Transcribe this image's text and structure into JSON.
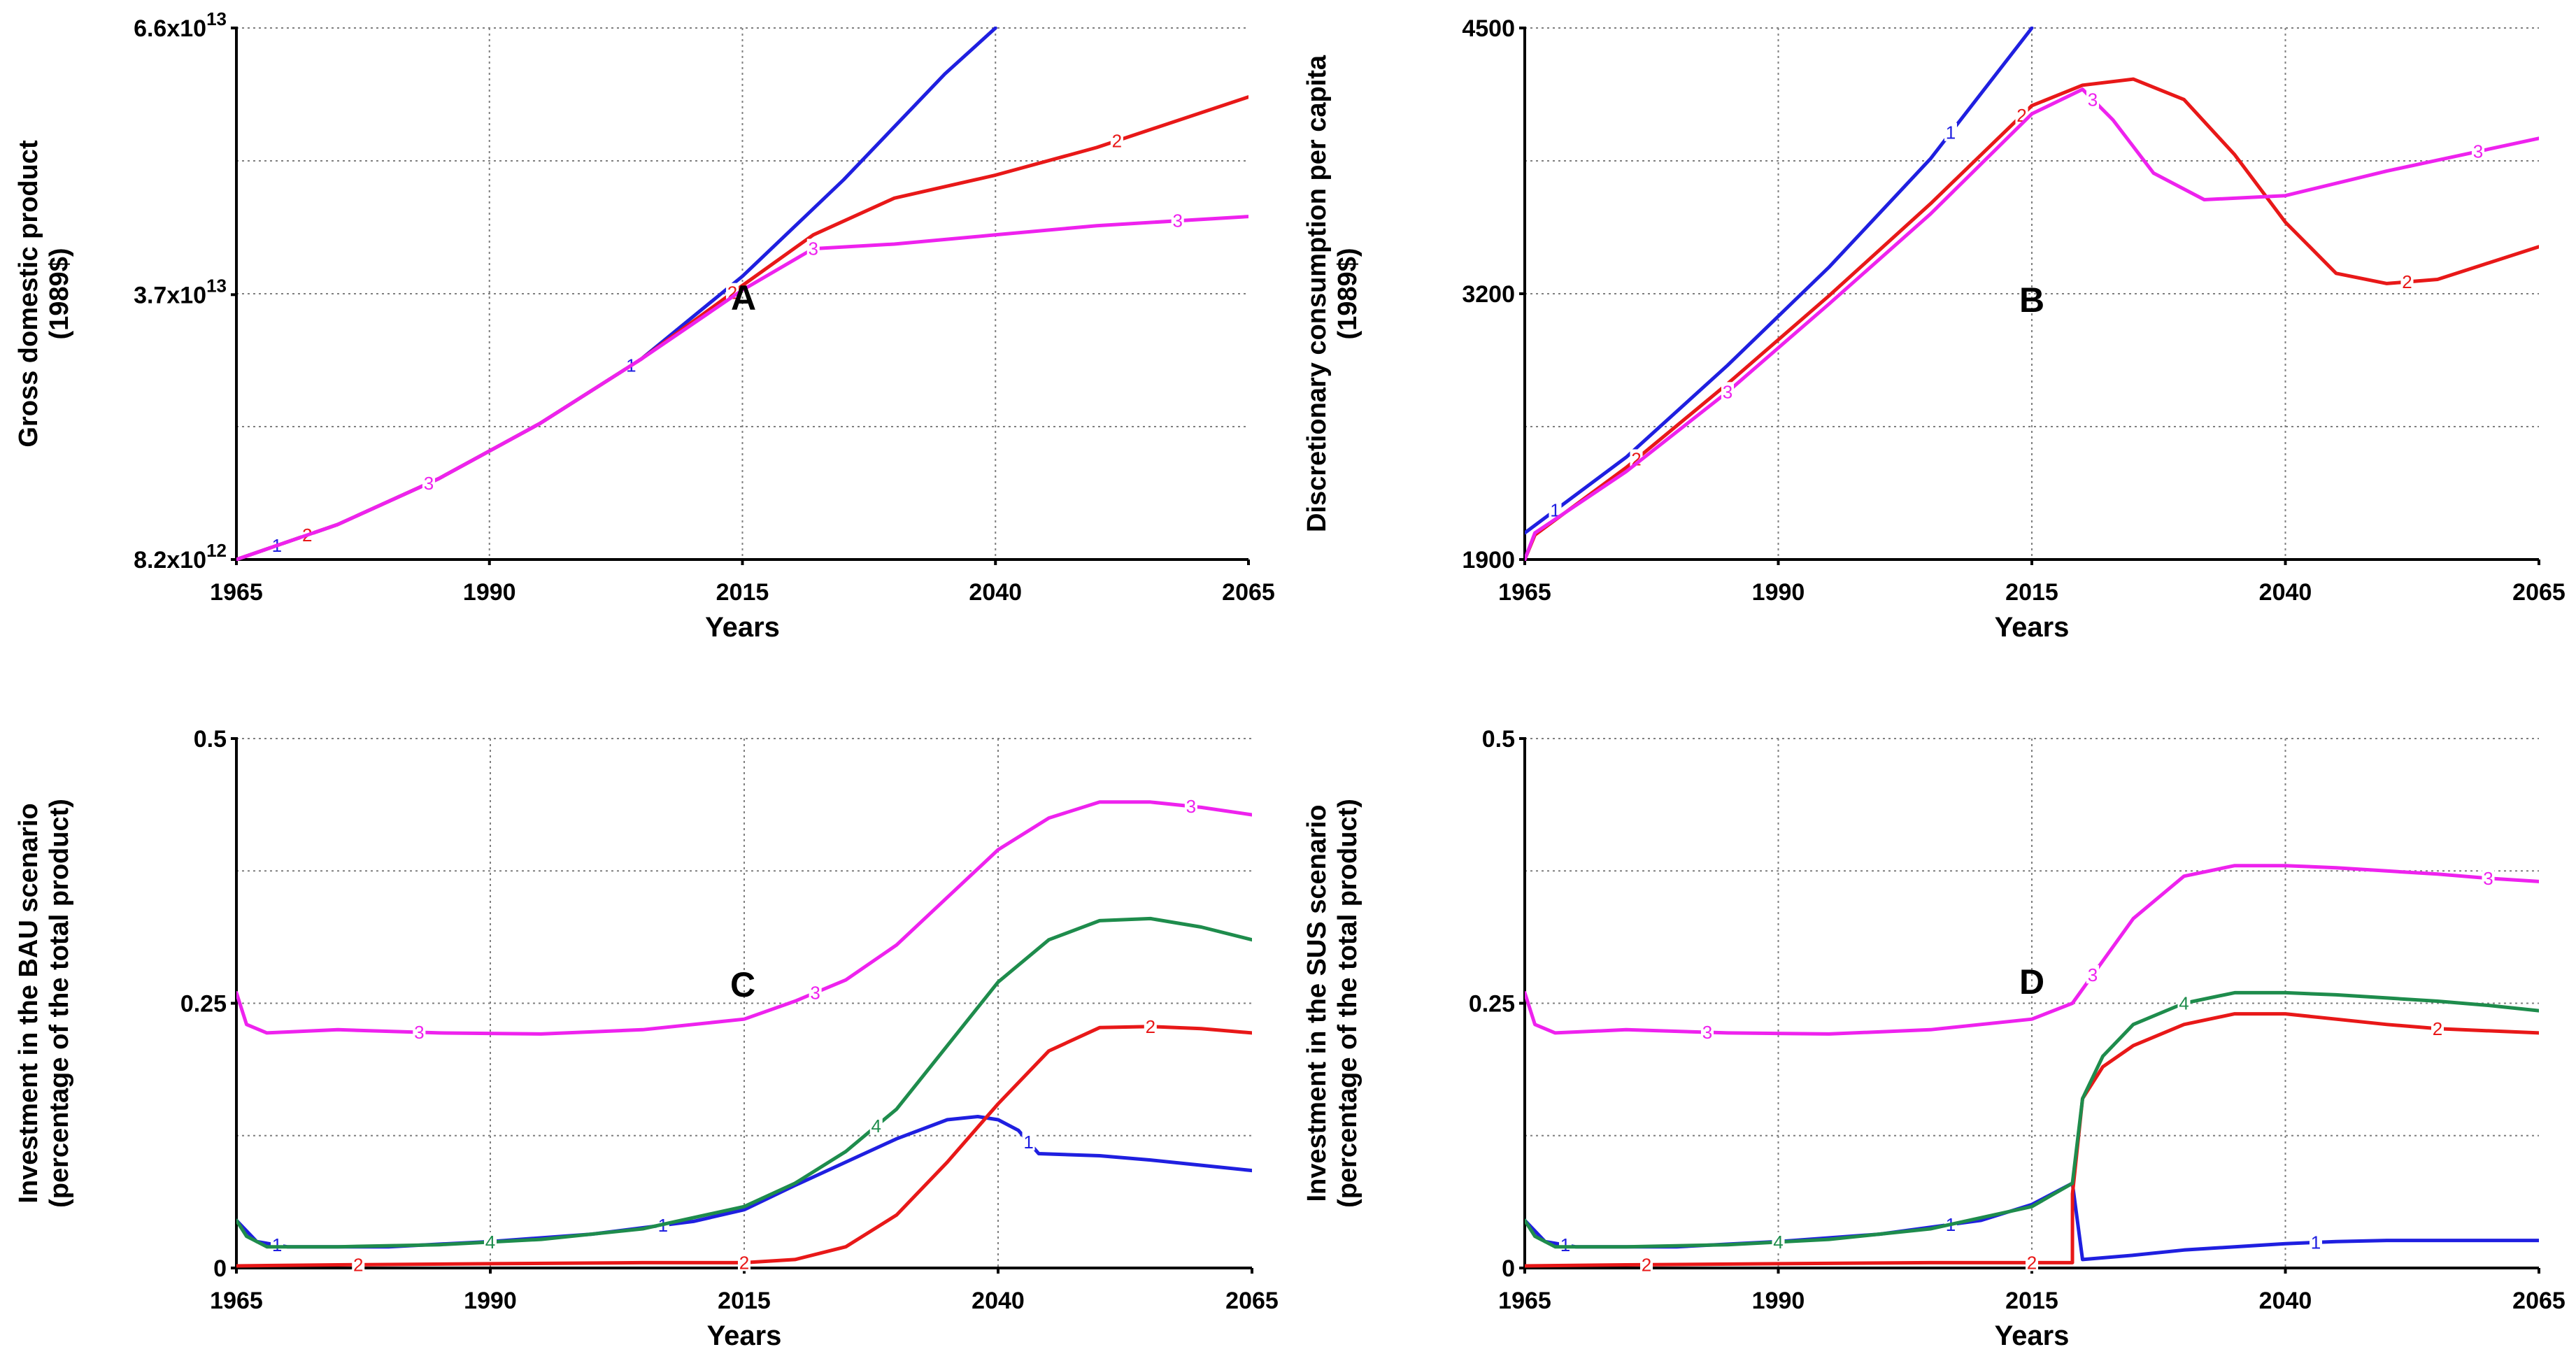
{
  "colors": {
    "1": "#1f1fe0",
    "2": "#e81818",
    "3": "#ee22ee",
    "4": "#1e8c4c"
  },
  "chart_data": [
    {
      "id": "A",
      "type": "line",
      "panel_letter": "A",
      "xlabel": "Years",
      "ylabel_lines": [
        "Gross domestic product",
        "(1989$)"
      ],
      "x_ticks": [
        "1965",
        "1990",
        "2015",
        "2040",
        "2065"
      ],
      "xlim": [
        1965,
        2065
      ],
      "ylim": [
        8200000000000.0,
        66000000000000.0
      ],
      "y_ticks": [
        {
          "value": 8200000000000.0,
          "base": "8.2x10",
          "exp": "12"
        },
        {
          "value": 37000000000000.0,
          "base": "3.7x10",
          "exp": "13"
        },
        {
          "value": 66000000000000.0,
          "base": "6.6x10",
          "exp": "13"
        }
      ],
      "y_grid": [
        8200000000000.0,
        22650000000000.0,
        37100000000000.0,
        51550000000000.0,
        66000000000000.0
      ],
      "series": [
        {
          "name": "1",
          "x": [
            1965,
            1975,
            1985,
            1995,
            2005,
            2015,
            2025,
            2035,
            2040
          ],
          "y": [
            8200000000000.0,
            12000000000000.0,
            17000000000000.0,
            23000000000000.0,
            30000000000000.0,
            39000000000000.0,
            49500000000000.0,
            61000000000000.0,
            66000000000000.0
          ],
          "label_x": [
            1969,
            2004
          ]
        },
        {
          "name": "2",
          "x": [
            1965,
            1975,
            1985,
            1995,
            2005,
            2015,
            2022,
            2030,
            2040,
            2050,
            2065
          ],
          "y": [
            8200000000000.0,
            12000000000000.0,
            17000000000000.0,
            23000000000000.0,
            30000000000000.0,
            38000000000000.0,
            43500000000000.0,
            47500000000000.0,
            50000000000000.0,
            53000000000000.0,
            58500000000000.0
          ],
          "label_x": [
            1972,
            2014,
            2052
          ]
        },
        {
          "name": "3",
          "x": [
            1965,
            1975,
            1985,
            1995,
            2005,
            2015,
            2022,
            2030,
            2040,
            2050,
            2065
          ],
          "y": [
            8200000000000.0,
            12000000000000.0,
            17000000000000.0,
            23000000000000.0,
            30000000000000.0,
            37500000000000.0,
            42000000000000.0,
            42500000000000.0,
            43500000000000.0,
            44500000000000.0,
            45500000000000.0
          ],
          "label_x": [
            1984,
            2022,
            2058
          ]
        }
      ]
    },
    {
      "id": "B",
      "type": "line",
      "panel_letter": "B",
      "xlabel": "Years",
      "ylabel_lines": [
        "Discretionary consumption per capita",
        "(1989$)"
      ],
      "x_ticks": [
        "1965",
        "1990",
        "2015",
        "2040",
        "2065"
      ],
      "xlim": [
        1965,
        2065
      ],
      "ylim": [
        1900,
        4500
      ],
      "y_ticks": [
        {
          "value": 1900,
          "base": "1900",
          "exp": ""
        },
        {
          "value": 3200,
          "base": "3200",
          "exp": ""
        },
        {
          "value": 4500,
          "base": "4500",
          "exp": ""
        }
      ],
      "y_grid": [
        1900,
        2550,
        3200,
        3850,
        4500
      ],
      "series": [
        {
          "name": "1",
          "x": [
            1965,
            1975,
            1985,
            1995,
            2005,
            2015
          ],
          "y": [
            2030,
            2400,
            2850,
            3330,
            3860,
            4500
          ],
          "label_x": [
            1968,
            2007
          ]
        },
        {
          "name": "2",
          "x": [
            1965,
            1966,
            1975,
            1985,
            1995,
            2005,
            2015,
            2020,
            2025,
            2030,
            2035,
            2040,
            2045,
            2050,
            2055,
            2065
          ],
          "y": [
            1900,
            2020,
            2350,
            2760,
            3190,
            3640,
            4120,
            4220,
            4250,
            4150,
            3880,
            3550,
            3300,
            3250,
            3270,
            3430
          ],
          "label_x": [
            1976,
            2014,
            2052
          ]
        },
        {
          "name": "3",
          "x": [
            1965,
            1966,
            1975,
            1985,
            1995,
            2005,
            2015,
            2020,
            2023,
            2027,
            2032,
            2040,
            2050,
            2065
          ],
          "y": [
            1900,
            2030,
            2330,
            2720,
            3150,
            3590,
            4080,
            4200,
            4050,
            3790,
            3660,
            3680,
            3800,
            3960
          ],
          "label_x": [
            1985,
            2021,
            2059
          ]
        }
      ]
    },
    {
      "id": "C",
      "type": "line",
      "panel_letter": "C",
      "xlabel": "Years",
      "ylabel_lines": [
        "Investment in the BAU scenario",
        "(percentage of the total product)"
      ],
      "x_ticks": [
        "1965",
        "1990",
        "2015",
        "2040",
        "2065"
      ],
      "xlim": [
        1965,
        2065
      ],
      "ylim": [
        0,
        0.5
      ],
      "y_ticks": [
        {
          "value": 0,
          "base": "0",
          "exp": ""
        },
        {
          "value": 0.25,
          "base": "0.25",
          "exp": ""
        },
        {
          "value": 0.5,
          "base": "0.5",
          "exp": ""
        }
      ],
      "y_grid": [
        0,
        0.125,
        0.25,
        0.375,
        0.5
      ],
      "series": [
        {
          "name": "1",
          "x": [
            1965,
            1967,
            1970,
            1980,
            1990,
            2000,
            2010,
            2015,
            2020,
            2025,
            2030,
            2035,
            2038,
            2040,
            2042,
            2044,
            2050,
            2055,
            2060,
            2065
          ],
          "y": [
            0.045,
            0.025,
            0.02,
            0.02,
            0.025,
            0.032,
            0.044,
            0.055,
            0.078,
            0.1,
            0.122,
            0.14,
            0.143,
            0.14,
            0.13,
            0.108,
            0.106,
            0.102,
            0.097,
            0.092
          ],
          "label_x": [
            1969,
            2007,
            2043
          ]
        },
        {
          "name": "2",
          "x": [
            1965,
            1975,
            1990,
            2005,
            2015,
            2020,
            2025,
            2030,
            2035,
            2040,
            2045,
            2050,
            2055,
            2060,
            2065
          ],
          "y": [
            0.002,
            0.003,
            0.004,
            0.005,
            0.005,
            0.008,
            0.02,
            0.05,
            0.1,
            0.155,
            0.205,
            0.227,
            0.228,
            0.226,
            0.222
          ],
          "label_x": [
            1977,
            2015,
            2055
          ]
        },
        {
          "name": "3",
          "x": [
            1965,
            1966,
            1968,
            1975,
            1985,
            1995,
            2005,
            2015,
            2020,
            2025,
            2030,
            2035,
            2040,
            2045,
            2050,
            2055,
            2060,
            2065
          ],
          "y": [
            0.26,
            0.23,
            0.222,
            0.225,
            0.222,
            0.221,
            0.225,
            0.235,
            0.252,
            0.272,
            0.305,
            0.35,
            0.395,
            0.425,
            0.44,
            0.44,
            0.435,
            0.428
          ],
          "label_x": [
            1983,
            2022,
            2059
          ]
        },
        {
          "name": "4",
          "x": [
            1965,
            1966,
            1968,
            1975,
            1985,
            1995,
            2005,
            2015,
            2020,
            2025,
            2030,
            2035,
            2040,
            2045,
            2050,
            2055,
            2060,
            2065
          ],
          "y": [
            0.045,
            0.03,
            0.02,
            0.02,
            0.022,
            0.027,
            0.037,
            0.058,
            0.08,
            0.11,
            0.15,
            0.21,
            0.27,
            0.31,
            0.328,
            0.33,
            0.322,
            0.31
          ],
          "label_x": [
            1990,
            2028
          ]
        }
      ]
    },
    {
      "id": "D",
      "type": "line",
      "panel_letter": "D",
      "xlabel": "Years",
      "ylabel_lines": [
        "Investment in the SUS scenario",
        "(percentage of the total product)"
      ],
      "x_ticks": [
        "1965",
        "1990",
        "2015",
        "2040",
        "2065"
      ],
      "xlim": [
        1965,
        2065
      ],
      "ylim": [
        0,
        0.5
      ],
      "y_ticks": [
        {
          "value": 0,
          "base": "0",
          "exp": ""
        },
        {
          "value": 0.25,
          "base": "0.25",
          "exp": ""
        },
        {
          "value": 0.5,
          "base": "0.5",
          "exp": ""
        }
      ],
      "y_grid": [
        0,
        0.125,
        0.25,
        0.375,
        0.5
      ],
      "series": [
        {
          "name": "1",
          "x": [
            1965,
            1967,
            1970,
            1980,
            1990,
            2000,
            2010,
            2015,
            2019,
            2020,
            2025,
            2030,
            2035,
            2040,
            2045,
            2050,
            2065
          ],
          "y": [
            0.045,
            0.025,
            0.02,
            0.02,
            0.025,
            0.032,
            0.045,
            0.06,
            0.08,
            0.008,
            0.012,
            0.017,
            0.02,
            0.023,
            0.025,
            0.026,
            0.026
          ],
          "label_x": [
            1969,
            2007,
            2043
          ]
        },
        {
          "name": "2",
          "x": [
            1965,
            1975,
            1990,
            2005,
            2015,
            2019,
            2019.01,
            2020,
            2022,
            2025,
            2030,
            2035,
            2040,
            2045,
            2050,
            2055,
            2065
          ],
          "y": [
            0.002,
            0.003,
            0.004,
            0.005,
            0.005,
            0.005,
            0.07,
            0.16,
            0.19,
            0.21,
            0.23,
            0.24,
            0.24,
            0.235,
            0.23,
            0.226,
            0.222
          ],
          "label_x": [
            1977,
            2015,
            2055
          ]
        },
        {
          "name": "3",
          "x": [
            1965,
            1966,
            1968,
            1975,
            1985,
            1995,
            2005,
            2015,
            2019,
            2022,
            2025,
            2030,
            2035,
            2040,
            2045,
            2050,
            2055,
            2060,
            2065
          ],
          "y": [
            0.26,
            0.23,
            0.222,
            0.225,
            0.222,
            0.221,
            0.225,
            0.235,
            0.25,
            0.29,
            0.33,
            0.37,
            0.38,
            0.38,
            0.378,
            0.375,
            0.372,
            0.368,
            0.365
          ],
          "label_x": [
            1983,
            2021,
            2060
          ]
        },
        {
          "name": "4",
          "x": [
            1965,
            1966,
            1968,
            1975,
            1985,
            1995,
            2005,
            2015,
            2019,
            2020,
            2022,
            2025,
            2030,
            2035,
            2040,
            2045,
            2050,
            2055,
            2060,
            2065
          ],
          "y": [
            0.045,
            0.03,
            0.02,
            0.02,
            0.022,
            0.027,
            0.037,
            0.058,
            0.08,
            0.16,
            0.2,
            0.23,
            0.25,
            0.26,
            0.26,
            0.258,
            0.255,
            0.252,
            0.248,
            0.243
          ],
          "label_x": [
            1990,
            2030
          ]
        }
      ]
    }
  ]
}
